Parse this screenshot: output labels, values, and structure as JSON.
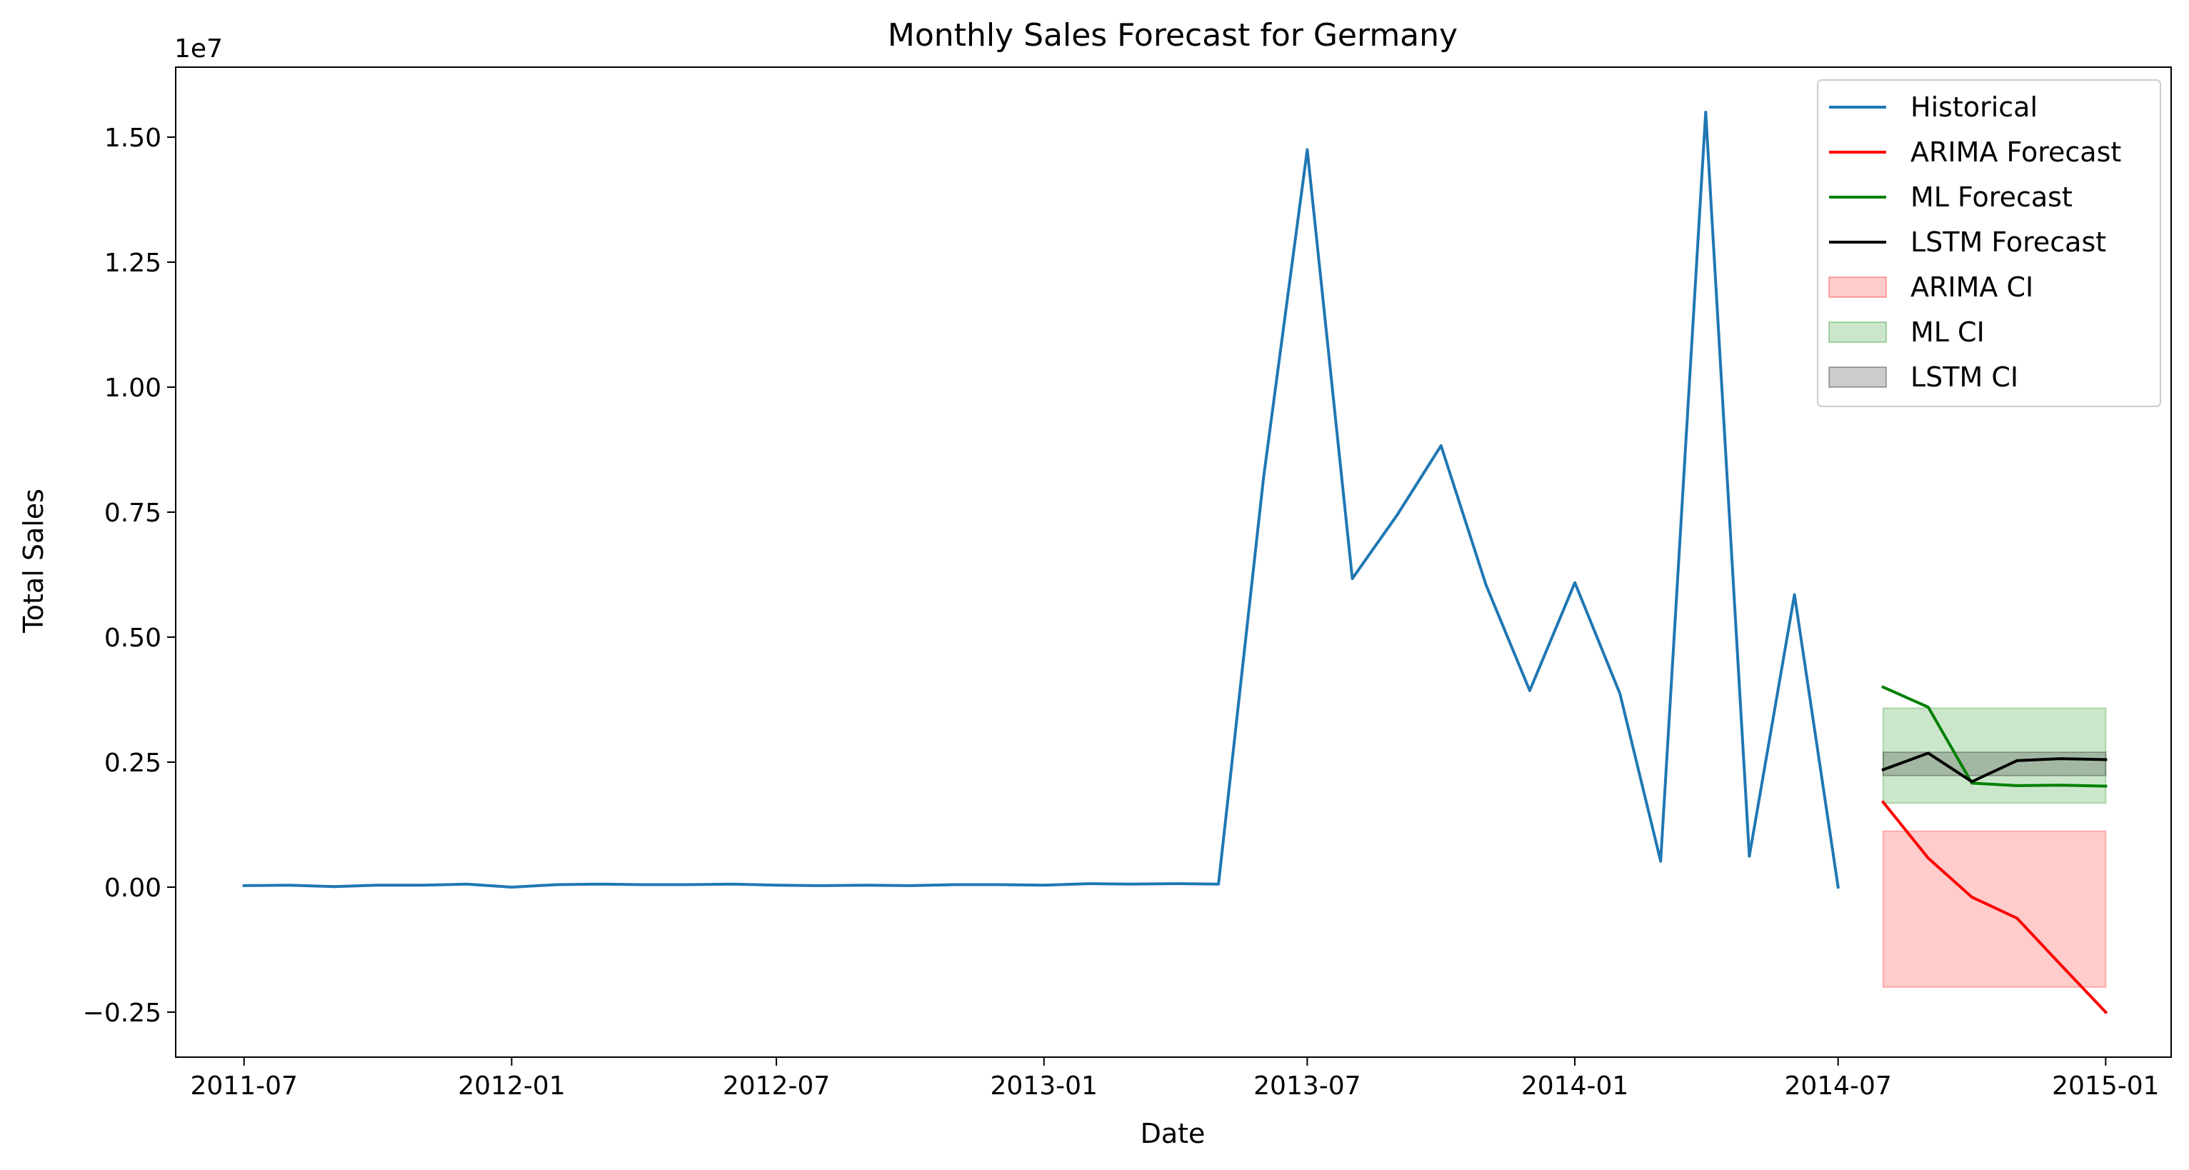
{
  "chart_data": {
    "type": "line",
    "title": "Monthly Sales Forecast for Germany",
    "xlabel": "Date",
    "ylabel": "Total Sales",
    "y_multiplier_label": "1e7",
    "x_range": [
      "2011-05-15",
      "2015-02-15"
    ],
    "xticks": [
      "2011-07",
      "2012-01",
      "2012-07",
      "2013-01",
      "2013-07",
      "2014-01",
      "2014-07",
      "2015-01"
    ],
    "ylim": [
      -3400000,
      16400000
    ],
    "yticks": [
      -2500000,
      0,
      2500000,
      5000000,
      7500000,
      10000000,
      12500000,
      15000000
    ],
    "ytick_labels": [
      "−0.25",
      "0.00",
      "0.25",
      "0.50",
      "0.75",
      "1.00",
      "1.25",
      "1.50"
    ],
    "grid": false,
    "legend_position": "top-right",
    "series": [
      {
        "name": "Historical",
        "color": "#1f77b4",
        "x": [
          "2011-07",
          "2011-08",
          "2011-09",
          "2011-10",
          "2011-11",
          "2011-12",
          "2012-01",
          "2012-02",
          "2012-03",
          "2012-04",
          "2012-05",
          "2012-06",
          "2012-07",
          "2012-08",
          "2012-09",
          "2012-10",
          "2012-11",
          "2012-12",
          "2013-01",
          "2013-02",
          "2013-03",
          "2013-04",
          "2013-05",
          "2013-06",
          "2013-07",
          "2013-08",
          "2013-09",
          "2013-10",
          "2013-11",
          "2013-12",
          "2014-01",
          "2014-02",
          "2014-03",
          "2014-04",
          "2014-05",
          "2014-06",
          "2014-07"
        ],
        "values": [
          30000,
          40000,
          10000,
          40000,
          40000,
          60000,
          0,
          50000,
          60000,
          50000,
          50000,
          60000,
          40000,
          30000,
          40000,
          30000,
          50000,
          50000,
          40000,
          70000,
          60000,
          70000,
          60000,
          8200000,
          14750000,
          6170000,
          7450000,
          8830000,
          6040000,
          3930000,
          6090000,
          3870000,
          520000,
          15500000,
          620000,
          5850000,
          0
        ]
      },
      {
        "name": "ARIMA Forecast",
        "color": "#ff0000",
        "x": [
          "2014-08",
          "2014-09",
          "2014-10",
          "2014-11",
          "2014-12",
          "2015-01"
        ],
        "values": [
          1700000,
          580000,
          -200000,
          -620000,
          -1550000,
          -2500000
        ]
      },
      {
        "name": "ML Forecast",
        "color": "#008000",
        "x": [
          "2014-08",
          "2014-09",
          "2014-10",
          "2014-11",
          "2014-12",
          "2015-01"
        ],
        "values": [
          4000000,
          3600000,
          2080000,
          2030000,
          2040000,
          2020000
        ]
      },
      {
        "name": "LSTM Forecast",
        "color": "#000000",
        "x": [
          "2014-08",
          "2014-09",
          "2014-10",
          "2014-11",
          "2014-12",
          "2015-01"
        ],
        "values": [
          2350000,
          2680000,
          2110000,
          2530000,
          2570000,
          2550000
        ]
      }
    ],
    "bands": [
      {
        "name": "ARIMA CI",
        "color": "#ff0000",
        "opacity": 0.2,
        "x": [
          "2014-08",
          "2015-01"
        ],
        "lower": -2000000,
        "upper": 1120000
      },
      {
        "name": "ML CI",
        "color": "#008000",
        "opacity": 0.2,
        "x": [
          "2014-08",
          "2015-01"
        ],
        "lower": 1680000,
        "upper": 3580000
      },
      {
        "name": "LSTM CI",
        "color": "#000000",
        "opacity": 0.2,
        "x": [
          "2014-08",
          "2015-01"
        ],
        "lower": 2230000,
        "upper": 2700000
      }
    ]
  }
}
